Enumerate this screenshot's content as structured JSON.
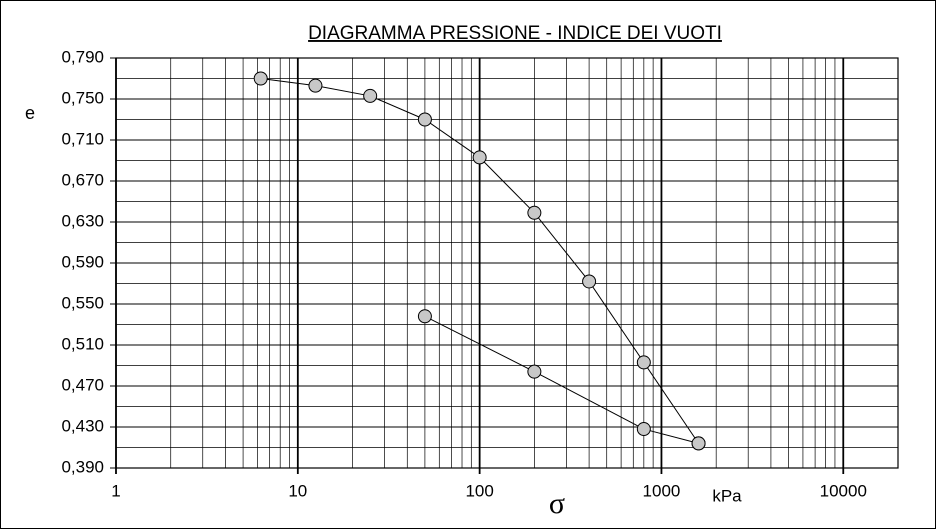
{
  "chart_data": {
    "type": "line",
    "title": "DIAGRAMMA  PRESSIONE - INDICE DEI VUOTI",
    "x_label": "σ",
    "x_unit": "kPa",
    "y_label": "e",
    "xscale": "log",
    "xlim": [
      1,
      20000
    ],
    "xticks": [
      1,
      10,
      100,
      1000,
      10000
    ],
    "ylim": [
      0.39,
      0.79
    ],
    "yticks": [
      {
        "value": 0.39,
        "label": "0,390"
      },
      {
        "value": 0.43,
        "label": "0,430"
      },
      {
        "value": 0.47,
        "label": "0,470"
      },
      {
        "value": 0.51,
        "label": "0,510"
      },
      {
        "value": 0.55,
        "label": "0,550"
      },
      {
        "value": 0.59,
        "label": "0,590"
      },
      {
        "value": 0.63,
        "label": "0,630"
      },
      {
        "value": 0.67,
        "label": "0,670"
      },
      {
        "value": 0.71,
        "label": "0,710"
      },
      {
        "value": 0.75,
        "label": "0,750"
      },
      {
        "value": 0.79,
        "label": "0,790"
      }
    ],
    "y_minor_ticks": [
      0.41,
      0.45,
      0.49,
      0.53,
      0.57,
      0.61,
      0.65,
      0.69,
      0.73,
      0.77
    ],
    "grid": true,
    "marker_color": "#c8c8c8",
    "line_color": "#000000",
    "series": [
      {
        "x": [
          6.25,
          12.5,
          25,
          50,
          100,
          200,
          400,
          800,
          1600
        ],
        "values": [
          0.77,
          0.763,
          0.753,
          0.73,
          0.693,
          0.639,
          0.572,
          0.493,
          0.414
        ]
      },
      {
        "x": [
          1600,
          800,
          200,
          50
        ],
        "values": [
          0.414,
          0.428,
          0.484,
          0.538
        ]
      }
    ]
  }
}
